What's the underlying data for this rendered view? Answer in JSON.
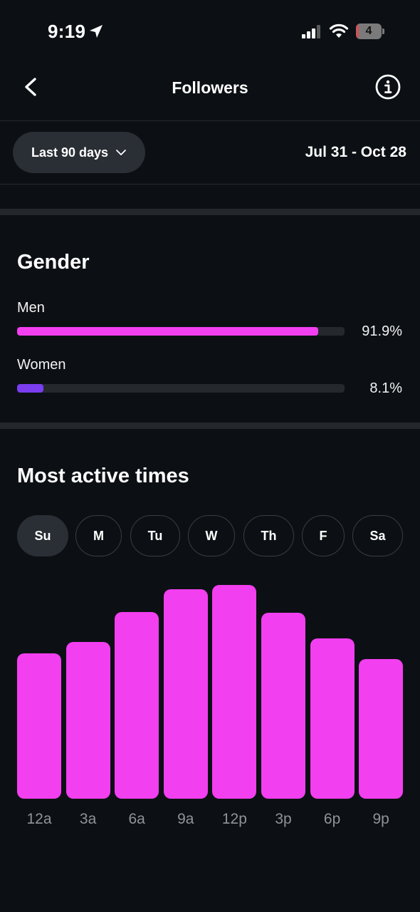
{
  "status_bar": {
    "time": "9:19",
    "battery": "4"
  },
  "header": {
    "title": "Followers",
    "back_icon": "chevron-left-icon",
    "info_icon": "info-icon"
  },
  "filter": {
    "range_label": "Last 90 days",
    "date_range": "Jul 31 - Oct 28"
  },
  "gender": {
    "title": "Gender",
    "rows": [
      {
        "label": "Men",
        "percent_text": "91.9%",
        "value": 91.9,
        "color": "#f23ff0"
      },
      {
        "label": "Women",
        "percent_text": "8.1%",
        "value": 8.1,
        "color": "#7b3df0"
      }
    ]
  },
  "active_times": {
    "title": "Most active times",
    "days": [
      "Su",
      "M",
      "Tu",
      "W",
      "Th",
      "F",
      "Sa"
    ],
    "selected_day": "Su"
  },
  "chart_data": {
    "type": "bar",
    "categories": [
      "12a",
      "3a",
      "6a",
      "9a",
      "12p",
      "3p",
      "6p",
      "9p"
    ],
    "values": [
      68,
      73.5,
      87.5,
      98,
      100,
      87,
      75,
      65.5
    ],
    "ylim": [
      0,
      100
    ],
    "color": "#f23ff0",
    "grid": false
  }
}
